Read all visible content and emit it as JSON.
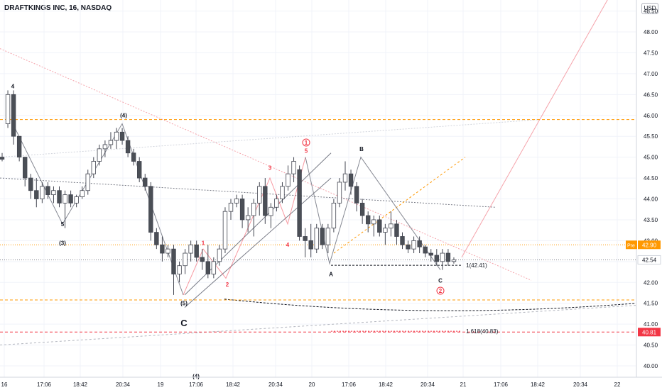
{
  "header": {
    "title": "DRAFTKINGS INC, 16, NASDAQ",
    "currency": "USD"
  },
  "colors": {
    "bg": "#ffffff",
    "grid": "#f0f3fa",
    "axis": "#d1d4dc",
    "up": "#ffffff",
    "down": "#4b4f56",
    "wick": "#434651",
    "orange": "#ff9800",
    "red": "#f23645",
    "pink": "#f5a3ab",
    "grey": "#787b86"
  },
  "chart_data": {
    "type": "candlestick",
    "title": "DRAFTKINGS INC, 16, NASDAQ",
    "ylim": [
      39.8,
      49.2
    ],
    "y_ticks": [
      "40.00",
      "40.50",
      "41.00",
      "41.50",
      "42.00",
      "42.50",
      "43.00",
      "43.50",
      "44.00",
      "44.50",
      "45.00",
      "45.50",
      "46.00",
      "46.50",
      "47.00",
      "47.50",
      "48.00",
      "48.50"
    ],
    "x_ticks": [
      "16",
      "17:06",
      "18:42",
      "20:34",
      "19",
      "17:06",
      "18:42",
      "20:34",
      "20",
      "17:06",
      "18:42",
      "20:34",
      "21",
      "17:06",
      "18:42",
      "20:34",
      "22"
    ],
    "candles": [
      [
        45.0,
        45.1,
        44.9,
        44.95
      ],
      [
        45.8,
        46.6,
        45.7,
        46.5
      ],
      [
        46.5,
        46.6,
        45.3,
        45.5
      ],
      [
        45.5,
        45.5,
        44.9,
        45.0
      ],
      [
        45.0,
        45.0,
        44.3,
        44.5
      ],
      [
        44.5,
        44.6,
        44.0,
        44.2
      ],
      [
        44.2,
        44.5,
        43.8,
        44.0
      ],
      [
        44.0,
        44.4,
        43.9,
        44.3
      ],
      [
        44.3,
        44.4,
        44.0,
        44.1
      ],
      [
        44.1,
        44.3,
        43.9,
        44.2
      ],
      [
        44.2,
        44.3,
        43.8,
        43.9
      ],
      [
        43.9,
        44.2,
        43.3,
        44.1
      ],
      [
        44.1,
        44.2,
        43.8,
        43.9
      ],
      [
        43.9,
        44.1,
        43.8,
        44.05
      ],
      [
        44.05,
        44.3,
        44.0,
        44.2
      ],
      [
        44.2,
        44.7,
        44.1,
        44.6
      ],
      [
        44.6,
        45.0,
        44.5,
        44.9
      ],
      [
        44.9,
        45.3,
        44.8,
        45.2
      ],
      [
        45.2,
        45.4,
        45.0,
        45.3
      ],
      [
        45.3,
        45.6,
        45.2,
        45.4
      ],
      [
        45.4,
        45.7,
        45.2,
        45.6
      ],
      [
        45.6,
        45.7,
        45.3,
        45.4
      ],
      [
        45.4,
        45.5,
        45.0,
        45.1
      ],
      [
        45.1,
        45.2,
        44.8,
        44.9
      ],
      [
        44.9,
        45.0,
        44.4,
        44.5
      ],
      [
        44.5,
        44.6,
        44.2,
        44.3
      ],
      [
        44.3,
        44.4,
        43.0,
        43.2
      ],
      [
        43.2,
        43.3,
        42.8,
        42.9
      ],
      [
        42.9,
        43.1,
        42.5,
        42.7
      ],
      [
        42.7,
        42.9,
        42.6,
        42.8
      ],
      [
        42.8,
        42.9,
        41.7,
        42.2
      ],
      [
        42.2,
        42.5,
        42.0,
        42.4
      ],
      [
        42.4,
        42.8,
        42.2,
        42.7
      ],
      [
        42.7,
        43.0,
        42.5,
        42.9
      ],
      [
        42.9,
        43.0,
        42.5,
        42.6
      ],
      [
        42.6,
        42.8,
        42.3,
        42.5
      ],
      [
        42.5,
        42.9,
        42.1,
        42.2
      ],
      [
        42.2,
        42.6,
        42.1,
        42.5
      ],
      [
        42.5,
        42.9,
        42.4,
        42.8
      ],
      [
        42.8,
        43.8,
        42.7,
        43.7
      ],
      [
        43.7,
        44.0,
        43.5,
        43.9
      ],
      [
        43.9,
        44.1,
        43.8,
        44.0
      ],
      [
        44.0,
        44.1,
        43.3,
        43.5
      ],
      [
        43.5,
        43.8,
        43.2,
        43.6
      ],
      [
        43.6,
        44.0,
        43.1,
        43.9
      ],
      [
        43.9,
        44.4,
        43.6,
        44.3
      ],
      [
        44.3,
        44.5,
        43.4,
        43.6
      ],
      [
        43.6,
        43.9,
        43.3,
        43.8
      ],
      [
        43.8,
        44.1,
        43.7,
        44.0
      ],
      [
        44.0,
        44.4,
        43.9,
        44.3
      ],
      [
        44.3,
        44.8,
        44.2,
        44.6
      ],
      [
        44.6,
        45.0,
        44.4,
        44.9
      ],
      [
        44.7,
        44.8,
        43.0,
        43.1
      ],
      [
        43.1,
        43.3,
        42.6,
        43.0
      ],
      [
        43.0,
        43.4,
        42.6,
        42.8
      ],
      [
        42.8,
        43.4,
        42.7,
        43.3
      ],
      [
        43.3,
        43.4,
        42.8,
        42.9
      ],
      [
        42.9,
        43.4,
        42.7,
        43.3
      ],
      [
        43.3,
        44.0,
        43.2,
        43.9
      ],
      [
        43.9,
        44.5,
        43.8,
        44.4
      ],
      [
        44.4,
        44.9,
        44.2,
        44.6
      ],
      [
        44.6,
        44.7,
        44.1,
        44.3
      ],
      [
        44.3,
        44.4,
        43.7,
        43.9
      ],
      [
        43.9,
        44.0,
        43.4,
        43.6
      ],
      [
        43.6,
        43.7,
        43.2,
        43.4
      ],
      [
        43.4,
        43.6,
        43.1,
        43.5
      ],
      [
        43.5,
        43.6,
        43.1,
        43.2
      ],
      [
        43.2,
        43.4,
        42.9,
        43.3
      ],
      [
        43.3,
        43.7,
        43.1,
        43.4
      ],
      [
        43.4,
        43.5,
        42.9,
        43.1
      ],
      [
        43.1,
        43.2,
        42.8,
        42.9
      ],
      [
        42.9,
        43.0,
        42.7,
        42.8
      ],
      [
        42.8,
        43.1,
        42.7,
        43.0
      ],
      [
        43.0,
        43.1,
        42.7,
        42.85
      ],
      [
        42.85,
        42.9,
        42.6,
        42.7
      ],
      [
        42.7,
        42.8,
        42.5,
        42.65
      ],
      [
        42.65,
        42.8,
        42.4,
        42.5
      ],
      [
        42.5,
        42.8,
        42.3,
        42.7
      ],
      [
        42.7,
        42.8,
        42.4,
        42.5
      ],
      [
        42.5,
        42.6,
        42.45,
        42.54
      ]
    ],
    "horizontal_levels": [
      {
        "value": 45.9,
        "style": "orange-dashed"
      },
      {
        "value": 42.9,
        "style": "orange-dotted",
        "label": "Pre",
        "price_label": "42.90"
      },
      {
        "value": 42.54,
        "style": "grey-dotted",
        "price_label": "42.54"
      },
      {
        "value": 41.58,
        "style": "orange-dashed"
      },
      {
        "value": 40.81,
        "style": "red-dashed",
        "price_label": "40.81"
      }
    ],
    "wave_labels": [
      {
        "text": "4",
        "color": "black"
      },
      {
        "text": "5",
        "color": "black"
      },
      {
        "text": "(3)",
        "color": "black"
      },
      {
        "text": "(4)",
        "color": "black"
      },
      {
        "text": "(5)",
        "color": "black"
      },
      {
        "text": "C",
        "color": "black"
      },
      {
        "text": "(4)",
        "color": "black"
      },
      {
        "text": "1",
        "color": "red"
      },
      {
        "text": "2",
        "color": "red"
      },
      {
        "text": "3",
        "color": "red"
      },
      {
        "text": "4",
        "color": "red"
      },
      {
        "text": "5",
        "color": "red"
      },
      {
        "text": "1",
        "color": "red",
        "circled": true
      },
      {
        "text": "A",
        "color": "black"
      },
      {
        "text": "B",
        "color": "black"
      },
      {
        "text": "C",
        "color": "black"
      },
      {
        "text": "2",
        "color": "red",
        "circled": true
      }
    ],
    "annotations": [
      "1(42.41)",
      "1.618(40.83)"
    ]
  }
}
